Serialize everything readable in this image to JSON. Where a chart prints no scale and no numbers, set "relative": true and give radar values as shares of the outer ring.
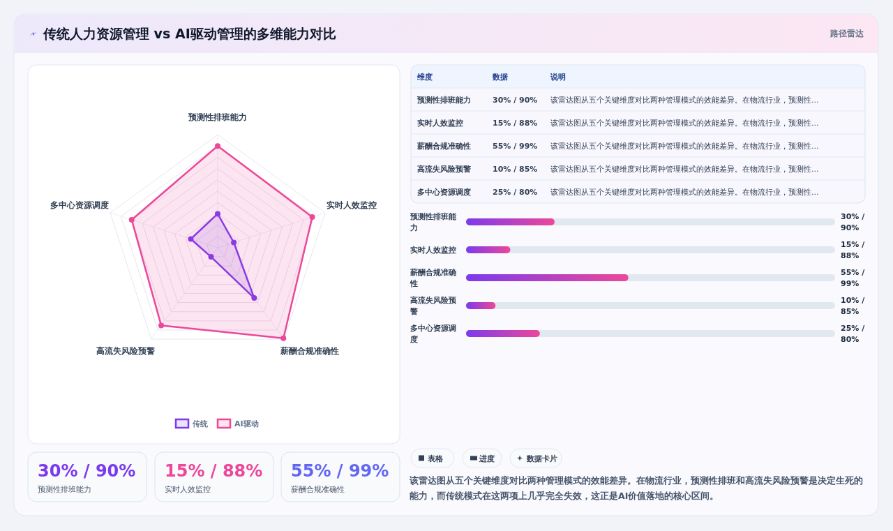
{
  "chart_data": [
    {
      "type": "other",
      "title": "传统人力资源管理 vs AI驱动管理的多维能力对比",
      "subtitle": "路径雷达"
    },
    {
      "type": "radar",
      "relative": true,
      "categories": [
        "预测性排班能力",
        "实时人效监控",
        "薪酬合规准确性",
        "高流失风险预警",
        "多中心资源调度"
      ],
      "series": [
        {
          "name": "传统",
          "color": "#7c3aed",
          "values": [
            0.3,
            0.15,
            0.55,
            0.1,
            0.25
          ]
        },
        {
          "name": "AI驱动",
          "color": "#ec4899",
          "values": [
            0.9,
            0.88,
            0.99,
            0.85,
            0.8
          ]
        }
      ],
      "grid": true,
      "legend": "bottom",
      "marker": "circle"
    },
    {
      "type": "other",
      "annotations": [
        "维度",
        "数据",
        "说明",
        "预测性排班能力",
        "30% / 90%",
        "该雷达图从五个关键维度对比两种管理模式的效能差异。在物流行业，预测性...",
        "实时人效监控",
        "15% / 88%",
        "该雷达图从五个关键维度对比两种管理模式的效能差异。在物流行业，预测性...",
        "薪酬合规准确性",
        "55% / 99%",
        "该雷达图从五个关键维度对比两种管理模式的效能差异。在物流行业，预测性...",
        "高流失风险预警",
        "10% / 85%",
        "该雷达图从五个关键维度对比两种管理模式的效能差异。在物流行业，预测性...",
        "多中心资源调度",
        "25% / 80%",
        "该雷达图从五个关键维度对比两种管理模式的效能差异。在物流行业，预测性..."
      ]
    },
    {
      "type": "bar",
      "orientation": "horizontal",
      "categories": [
        "预测性排班能力",
        "实时人效监控",
        "薪酬合规准确性",
        "高流失风险预警",
        "多中心资源调度"
      ],
      "values": [
        30,
        15,
        55,
        10,
        25
      ],
      "value_labels": [
        "30% / 90%",
        "15% / 88%",
        "55% / 99%",
        "10% / 85%",
        "25% / 80%"
      ],
      "color": "#7c3aed"
    },
    {
      "type": "other",
      "annotations": [
        "30% / 90%",
        "预测性排班能力",
        "15% / 88%",
        "实时人效监控",
        "55% / 99%",
        "薪酬合规准确性"
      ],
      "colors": [
        "#7c3aed",
        "#ec4899",
        "#6366f1"
      ]
    },
    {
      "type": "other",
      "annotations": [
        "表格",
        "进度",
        "数据卡片",
        "该雷达图从五个关键维度对比两种管理模式的效能差异。在物流行业，预测性排班和高流失风险预警是决定生死的能力，而传统模式在这两项上几乎完全失效，这正是AI价值落地的核心区间。"
      ]
    }
  ]
}
